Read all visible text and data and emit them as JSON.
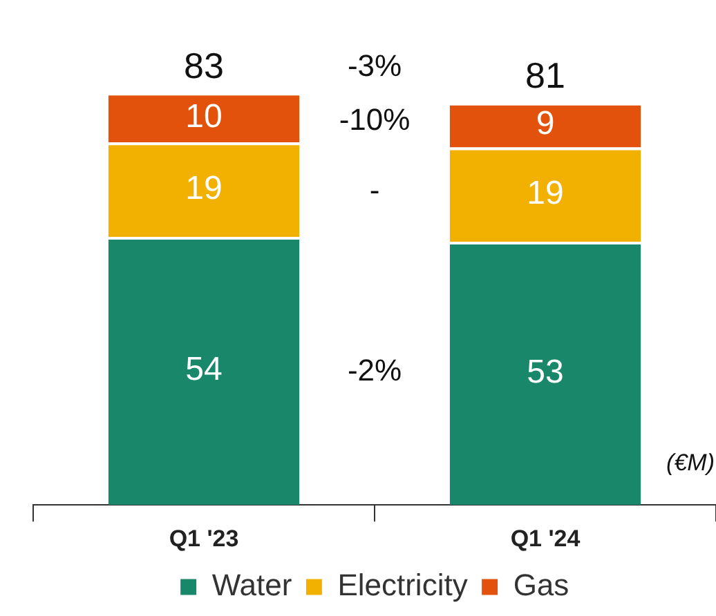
{
  "chart_data": {
    "type": "bar",
    "stacked": true,
    "categories": [
      "Q1 '23",
      "Q1 '24"
    ],
    "series": [
      {
        "name": "Water",
        "color": "#18876a",
        "values": [
          54,
          53
        ]
      },
      {
        "name": "Electricity",
        "color": "#f2b000",
        "values": [
          19,
          19
        ]
      },
      {
        "name": "Gas",
        "color": "#e2520c",
        "values": [
          10,
          9
        ]
      }
    ],
    "data_labels": true,
    "totals": [
      "83",
      "81"
    ],
    "legend": "bottom",
    "grid": false,
    "tick_labels": "x",
    "annotations": [
      "-3%",
      "-10%",
      "-",
      "-2%",
      "(€M)"
    ]
  }
}
